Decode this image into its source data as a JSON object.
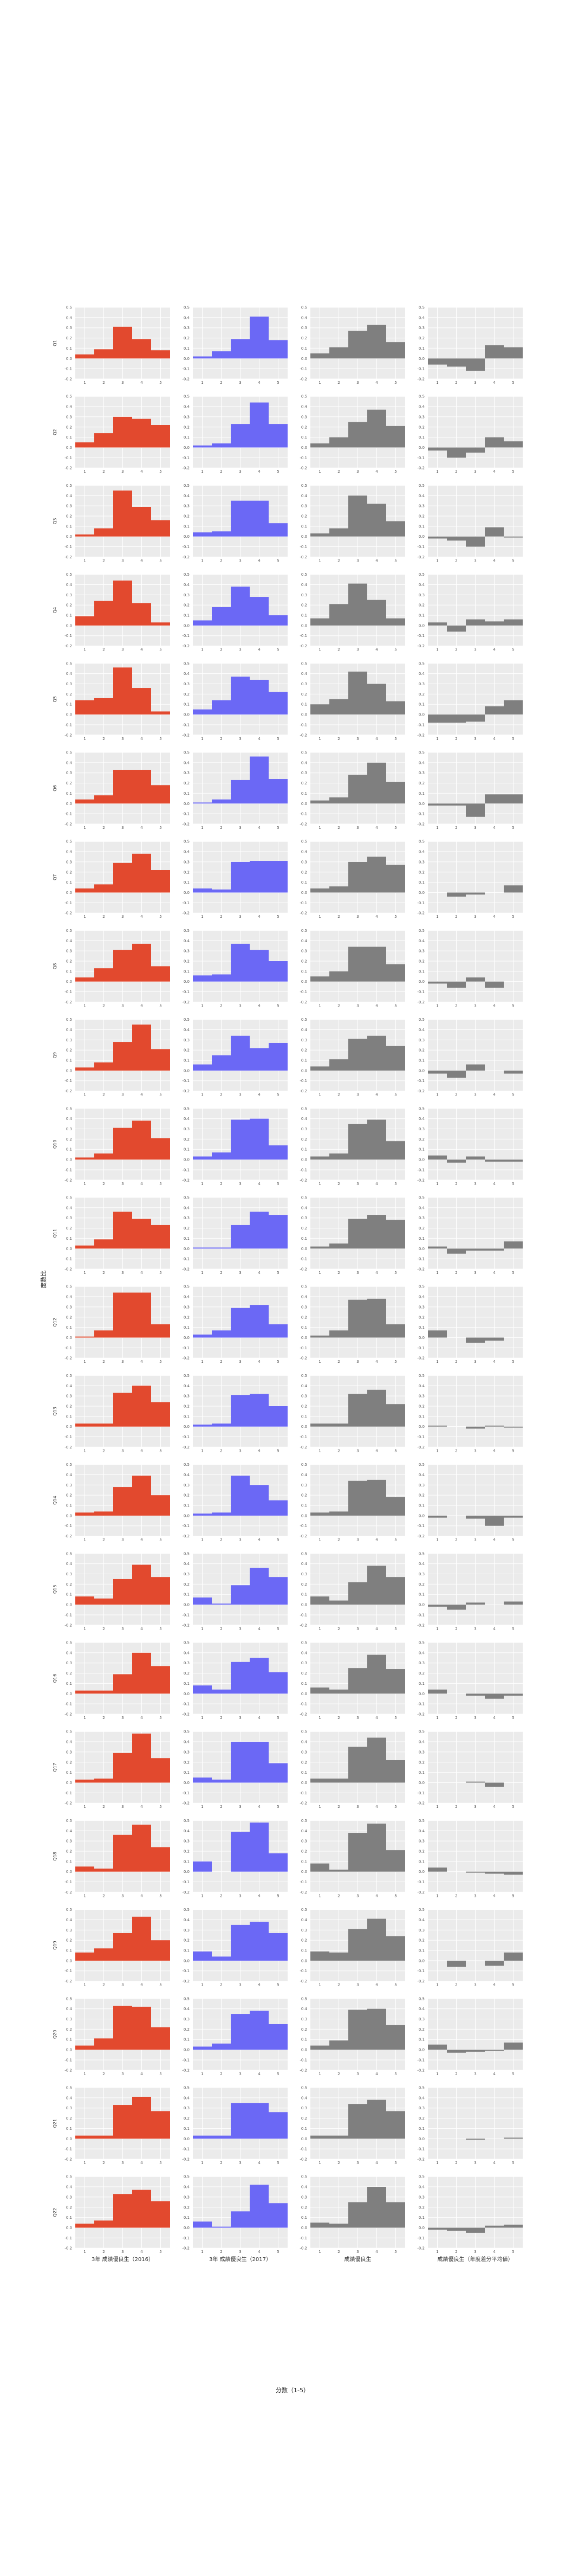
{
  "chart_data": {
    "type": "bar",
    "xlabel": "分数（1-5）",
    "ylabel": "度数比",
    "x": [
      1,
      2,
      3,
      4,
      5
    ],
    "x_ticks": [
      "1",
      "2",
      "3",
      "4",
      "5"
    ],
    "ylim": [
      -0.2,
      0.5
    ],
    "y_ticks": [
      "-0.2",
      "-0.1",
      "0.0",
      "0.1",
      "0.2",
      "0.3",
      "0.4",
      "0.5"
    ],
    "grid": true,
    "colors": {
      "a": "#e2492e",
      "b": "#6b68f5",
      "c": "#7f7f7f",
      "d": "#7f7f7f"
    },
    "columns": [
      {
        "key": "a",
        "label": "3年 成績優良生（2016）"
      },
      {
        "key": "b",
        "label": "3年 成績優良生（2017）"
      },
      {
        "key": "c",
        "label": "成績優良生"
      },
      {
        "key": "d",
        "label": "成績優良生（年度差分平均値）"
      }
    ],
    "rows": [
      {
        "label": "Q1",
        "a": [
          0.04,
          0.09,
          0.31,
          0.19,
          0.08
        ],
        "b": [
          0.02,
          0.07,
          0.19,
          0.41,
          0.18
        ],
        "c": [
          0.05,
          0.11,
          0.27,
          0.33,
          0.16
        ],
        "d": [
          -0.06,
          -0.08,
          -0.12,
          0.13,
          0.11
        ]
      },
      {
        "label": "Q2",
        "a": [
          0.05,
          0.14,
          0.3,
          0.28,
          0.22
        ],
        "b": [
          0.02,
          0.04,
          0.23,
          0.44,
          0.23
        ],
        "c": [
          0.04,
          0.1,
          0.25,
          0.37,
          0.21
        ],
        "d": [
          -0.03,
          -0.1,
          -0.05,
          0.1,
          0.06
        ]
      },
      {
        "label": "Q3",
        "a": [
          0.02,
          0.08,
          0.45,
          0.29,
          0.16
        ],
        "b": [
          0.04,
          0.05,
          0.35,
          0.35,
          0.13
        ],
        "c": [
          0.03,
          0.08,
          0.4,
          0.32,
          0.15
        ],
        "d": [
          -0.02,
          -0.04,
          -0.1,
          0.09,
          -0.01
        ]
      },
      {
        "label": "Q4",
        "a": [
          0.09,
          0.24,
          0.44,
          0.22,
          0.03
        ],
        "b": [
          0.05,
          0.18,
          0.38,
          0.28,
          0.1
        ],
        "c": [
          0.07,
          0.21,
          0.41,
          0.25,
          0.07
        ],
        "d": [
          0.03,
          -0.06,
          0.06,
          0.04,
          0.06
        ]
      },
      {
        "label": "Q5",
        "a": [
          0.14,
          0.16,
          0.46,
          0.26,
          0.03
        ],
        "b": [
          0.05,
          0.14,
          0.37,
          0.34,
          0.22
        ],
        "c": [
          0.1,
          0.15,
          0.42,
          0.3,
          0.13
        ],
        "d": [
          -0.08,
          -0.08,
          -0.07,
          0.08,
          0.14
        ]
      },
      {
        "label": "Q6",
        "a": [
          0.04,
          0.08,
          0.33,
          0.33,
          0.18
        ],
        "b": [
          0.01,
          0.04,
          0.23,
          0.46,
          0.24
        ],
        "c": [
          0.03,
          0.06,
          0.28,
          0.4,
          0.21
        ],
        "d": [
          -0.02,
          -0.02,
          -0.13,
          0.09,
          0.09
        ]
      },
      {
        "label": "Q7",
        "a": [
          0.04,
          0.08,
          0.29,
          0.38,
          0.22
        ],
        "b": [
          0.04,
          0.03,
          0.3,
          0.31,
          0.31
        ],
        "c": [
          0.04,
          0.06,
          0.3,
          0.35,
          0.27
        ],
        "d": [
          0.0,
          -0.04,
          -0.02,
          0.0,
          0.07
        ]
      },
      {
        "label": "Q8",
        "a": [
          0.04,
          0.13,
          0.31,
          0.37,
          0.15
        ],
        "b": [
          0.06,
          0.07,
          0.37,
          0.31,
          0.2
        ],
        "c": [
          0.05,
          0.1,
          0.34,
          0.34,
          0.17
        ],
        "d": [
          -0.02,
          -0.06,
          0.04,
          -0.06,
          0.0
        ]
      },
      {
        "label": "Q9",
        "a": [
          0.03,
          0.08,
          0.28,
          0.45,
          0.21
        ],
        "b": [
          0.06,
          0.15,
          0.34,
          0.22,
          0.27
        ],
        "c": [
          0.04,
          0.11,
          0.31,
          0.34,
          0.24
        ],
        "d": [
          -0.03,
          -0.07,
          0.06,
          0.0,
          -0.03
        ]
      },
      {
        "label": "Q10",
        "a": [
          0.02,
          0.06,
          0.31,
          0.38,
          0.21
        ],
        "b": [
          0.03,
          0.07,
          0.39,
          0.4,
          0.14
        ],
        "c": [
          0.03,
          0.06,
          0.35,
          0.39,
          0.18
        ],
        "d": [
          0.04,
          -0.03,
          0.03,
          -0.02,
          -0.02
        ]
      },
      {
        "label": "Q11",
        "a": [
          0.03,
          0.09,
          0.36,
          0.29,
          0.23
        ],
        "b": [
          0.01,
          0.01,
          0.23,
          0.36,
          0.33
        ],
        "c": [
          0.02,
          0.05,
          0.29,
          0.33,
          0.28
        ],
        "d": [
          0.02,
          -0.05,
          -0.02,
          -0.02,
          0.07
        ]
      },
      {
        "label": "Q12",
        "a": [
          0.01,
          0.07,
          0.44,
          0.44,
          0.13
        ],
        "b": [
          0.03,
          0.07,
          0.29,
          0.32,
          0.13
        ],
        "c": [
          0.02,
          0.07,
          0.37,
          0.38,
          0.13
        ],
        "d": [
          0.07,
          0.0,
          -0.05,
          -0.03,
          0.0
        ]
      },
      {
        "label": "Q13",
        "a": [
          0.03,
          0.03,
          0.33,
          0.4,
          0.24
        ],
        "b": [
          0.02,
          0.03,
          0.31,
          0.32,
          0.2
        ],
        "c": [
          0.03,
          0.03,
          0.32,
          0.36,
          0.22
        ],
        "d": [
          0.01,
          0.0,
          -0.02,
          0.01,
          -0.01
        ]
      },
      {
        "label": "Q14",
        "a": [
          0.03,
          0.04,
          0.28,
          0.39,
          0.2
        ],
        "b": [
          0.02,
          0.03,
          0.39,
          0.3,
          0.15
        ],
        "c": [
          0.03,
          0.04,
          0.34,
          0.35,
          0.18
        ],
        "d": [
          -0.02,
          0.0,
          -0.03,
          -0.1,
          -0.02
        ]
      },
      {
        "label": "Q15",
        "a": [
          0.08,
          0.06,
          0.25,
          0.39,
          0.27
        ],
        "b": [
          0.07,
          0.01,
          0.19,
          0.36,
          0.27
        ],
        "c": [
          0.08,
          0.04,
          0.22,
          0.38,
          0.27
        ],
        "d": [
          -0.02,
          -0.05,
          0.02,
          0.0,
          0.03
        ]
      },
      {
        "label": "Q16",
        "a": [
          0.03,
          0.03,
          0.19,
          0.4,
          0.27
        ],
        "b": [
          0.08,
          0.04,
          0.31,
          0.35,
          0.21
        ],
        "c": [
          0.06,
          0.04,
          0.25,
          0.38,
          0.24
        ],
        "d": [
          0.04,
          0.0,
          -0.02,
          -0.05,
          -0.02
        ]
      },
      {
        "label": "Q17",
        "a": [
          0.03,
          0.04,
          0.29,
          0.48,
          0.24
        ],
        "b": [
          0.05,
          0.03,
          0.4,
          0.4,
          0.19
        ],
        "c": [
          0.04,
          0.04,
          0.35,
          0.44,
          0.22
        ],
        "d": [
          0.0,
          0.0,
          0.01,
          -0.04,
          0.0
        ]
      },
      {
        "label": "Q18",
        "a": [
          0.05,
          0.03,
          0.36,
          0.46,
          0.24
        ],
        "b": [
          0.1,
          0.0,
          0.39,
          0.48,
          0.18
        ],
        "c": [
          0.08,
          0.02,
          0.38,
          0.47,
          0.21
        ],
        "d": [
          0.04,
          0.0,
          -0.01,
          -0.02,
          -0.03
        ]
      },
      {
        "label": "Q19",
        "a": [
          0.08,
          0.12,
          0.27,
          0.43,
          0.2
        ],
        "b": [
          0.09,
          0.04,
          0.35,
          0.38,
          0.27
        ],
        "c": [
          0.09,
          0.08,
          0.31,
          0.41,
          0.24
        ],
        "d": [
          0.0,
          -0.06,
          0.0,
          -0.05,
          0.08
        ]
      },
      {
        "label": "Q20",
        "a": [
          0.04,
          0.11,
          0.43,
          0.42,
          0.22
        ],
        "b": [
          0.03,
          0.06,
          0.35,
          0.38,
          0.25
        ],
        "c": [
          0.04,
          0.09,
          0.39,
          0.4,
          0.24
        ],
        "d": [
          0.05,
          -0.03,
          -0.02,
          -0.01,
          0.07
        ]
      },
      {
        "label": "Q21",
        "a": [
          0.03,
          0.03,
          0.33,
          0.41,
          0.27
        ],
        "b": [
          0.03,
          0.03,
          0.35,
          0.35,
          0.26
        ],
        "c": [
          0.03,
          0.03,
          0.34,
          0.38,
          0.27
        ],
        "d": [
          0.0,
          0.0,
          -0.01,
          0.0,
          0.01
        ]
      },
      {
        "label": "Q22",
        "a": [
          0.04,
          0.07,
          0.33,
          0.37,
          0.26
        ],
        "b": [
          0.06,
          0.01,
          0.16,
          0.42,
          0.24
        ],
        "c": [
          0.05,
          0.04,
          0.25,
          0.4,
          0.25
        ],
        "d": [
          -0.02,
          -0.03,
          -0.05,
          0.02,
          0.03
        ]
      }
    ]
  }
}
